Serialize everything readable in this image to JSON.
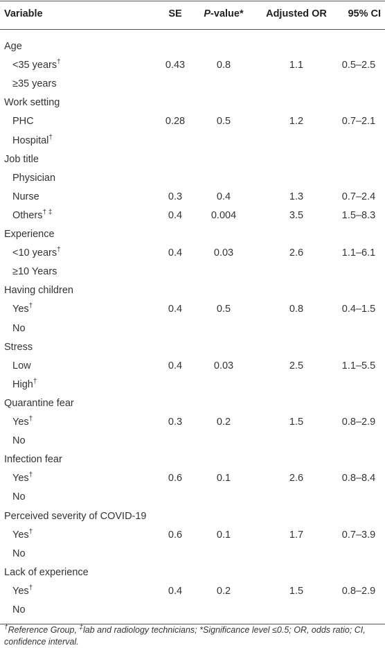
{
  "header": {
    "variable": "Variable",
    "se": "SE",
    "p_value": {
      "italic": "P",
      "text": "-value*"
    },
    "adjusted_or": "Adjusted OR",
    "ci": "95% CI"
  },
  "groups": [
    {
      "label": "Age",
      "rows": [
        {
          "label": "<35 years",
          "sup": "†",
          "se": "0.43",
          "p": "0.8",
          "or": "1.1",
          "ci": "0.5–2.5"
        },
        {
          "label": "≥35 years"
        }
      ]
    },
    {
      "label": "Work setting",
      "rows": [
        {
          "label": "PHC",
          "se": "0.28",
          "p": "0.5",
          "or": "1.2",
          "ci": "0.7–2.1"
        },
        {
          "label": "Hospital",
          "sup": "†"
        }
      ]
    },
    {
      "label": "Job title",
      "rows": [
        {
          "label": "Physician"
        },
        {
          "label": "Nurse",
          "se": "0.3",
          "p": "0.4",
          "or": "1.3",
          "ci": "0.7–2.4"
        },
        {
          "label": "Others",
          "sup": "† ‡",
          "se": "0.4",
          "p": "0.004",
          "or": "3.5",
          "ci": "1.5–8.3"
        }
      ]
    },
    {
      "label": "Experience",
      "rows": [
        {
          "label": "<10 years",
          "sup": "†",
          "se": "0.4",
          "p": "0.03",
          "or": "2.6",
          "ci": "1.1–6.1"
        },
        {
          "label": "≥10 Years"
        }
      ]
    },
    {
      "label": "Having children",
      "rows": [
        {
          "label": "Yes",
          "sup": "†",
          "se": "0.4",
          "p": "0.5",
          "or": "0.8",
          "ci": "0.4–1.5"
        },
        {
          "label": "No"
        }
      ]
    },
    {
      "label": "Stress",
      "rows": [
        {
          "label": "Low",
          "se": "0.4",
          "p": "0.03",
          "or": "2.5",
          "ci": "1.1–5.5"
        },
        {
          "label": "High",
          "sup": "†"
        }
      ]
    },
    {
      "label": "Quarantine fear",
      "rows": [
        {
          "label": "Yes",
          "sup": "†",
          "se": "0.3",
          "p": "0.2",
          "or": "1.5",
          "ci": "0.8–2.9"
        },
        {
          "label": "No"
        }
      ]
    },
    {
      "label": "Infection fear",
      "rows": [
        {
          "label": "Yes",
          "sup": "†",
          "se": "0.6",
          "p": "0.1",
          "or": "2.6",
          "ci": "0.8–8.4"
        },
        {
          "label": "No"
        }
      ]
    },
    {
      "label": "Perceived severity of COVID-19",
      "rows": [
        {
          "label": "Yes",
          "sup": "†",
          "se": "0.6",
          "p": "0.1",
          "or": "1.7",
          "ci": "0.7–3.9"
        },
        {
          "label": "No"
        }
      ]
    },
    {
      "label": "Lack of experience",
      "rows": [
        {
          "label": "Yes",
          "sup": "†",
          "se": "0.4",
          "p": "0.2",
          "or": "1.5",
          "ci": "0.8–2.9"
        },
        {
          "label": "No"
        }
      ]
    }
  ],
  "footnote": [
    {
      "sup": "†"
    },
    {
      "text": "Reference Group, "
    },
    {
      "sup": "‡"
    },
    {
      "text": "lab and radiology technicians; *Significance level ≤0.5; OR, odds ratio; CI, confidence interval."
    }
  ]
}
